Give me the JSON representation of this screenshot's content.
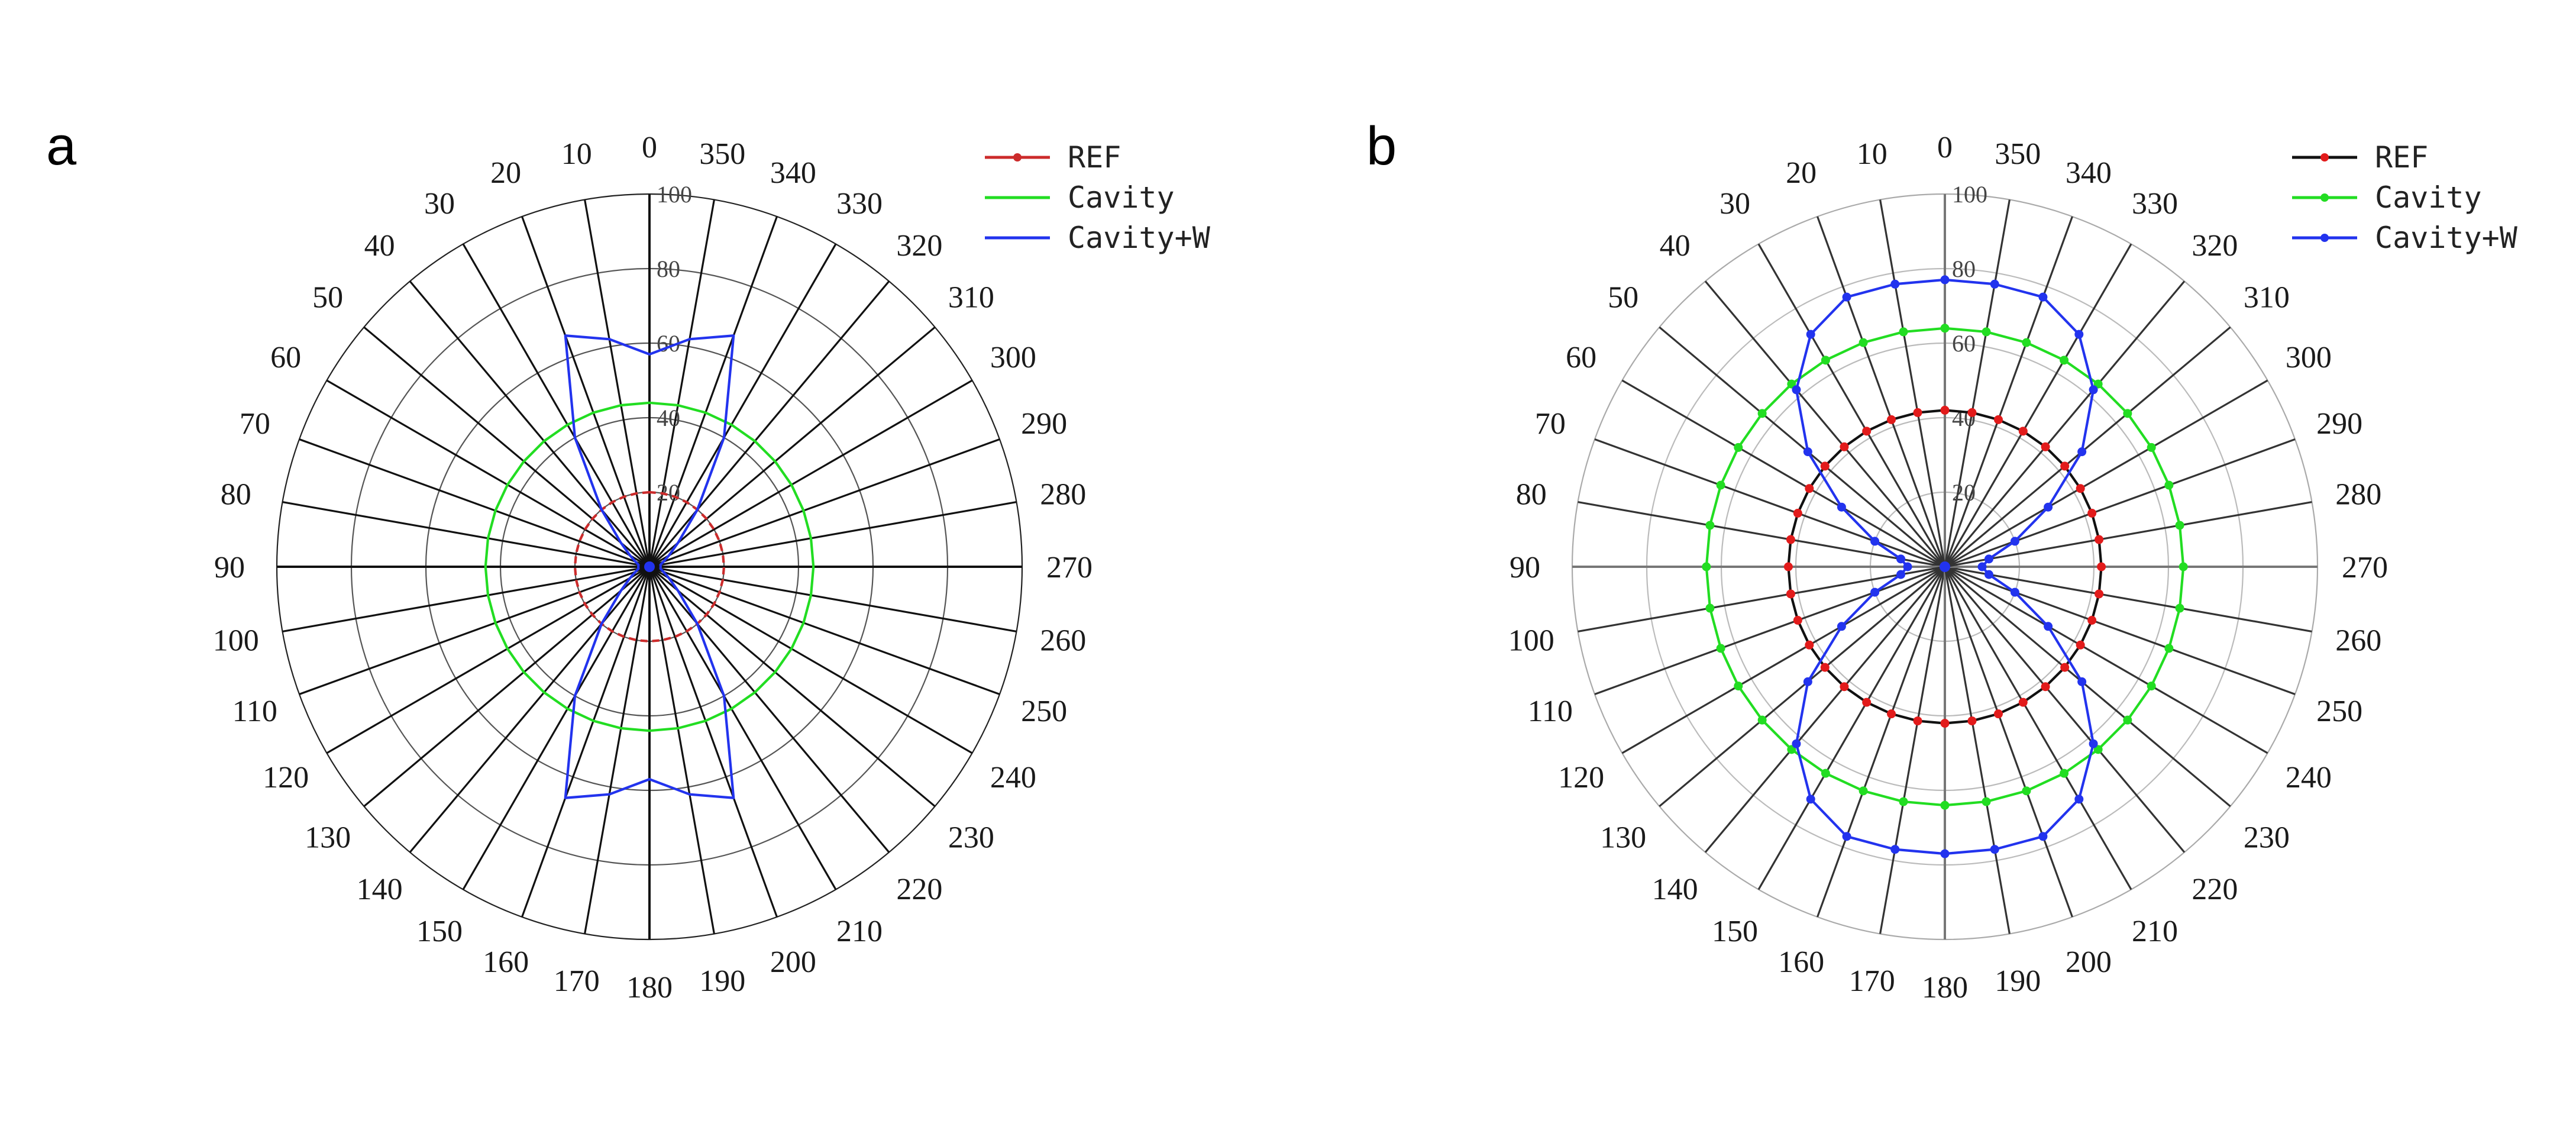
{
  "figure": {
    "panel_labels": [
      "a",
      "b"
    ]
  },
  "chart_data": [
    {
      "panel": "a",
      "type": "polar-line",
      "title": "",
      "angle_labels": [
        "0",
        "10",
        "20",
        "30",
        "40",
        "50",
        "60",
        "70",
        "80",
        "90",
        "100",
        "110",
        "120",
        "130",
        "140",
        "150",
        "160",
        "170",
        "180",
        "190",
        "200",
        "210",
        "220",
        "230",
        "240",
        "250",
        "260",
        "270",
        "280",
        "290",
        "300",
        "310",
        "320",
        "330",
        "340",
        "350"
      ],
      "angle_direction": "counterclockwise",
      "zero_location": "top",
      "radial_ticks": [
        "20",
        "40",
        "60",
        "80",
        "100"
      ],
      "rlim": [
        0,
        100
      ],
      "grid": true,
      "legend_position": "top-right",
      "series": [
        {
          "name": "REF",
          "color": "#cc2b2b",
          "line_style": "dashed",
          "marker": "none",
          "angles_deg": [
            0,
            10,
            20,
            30,
            40,
            50,
            60,
            70,
            80,
            90,
            100,
            110,
            120,
            130,
            140,
            150,
            160,
            170,
            180,
            190,
            200,
            210,
            220,
            230,
            240,
            250,
            260,
            270,
            280,
            290,
            300,
            310,
            320,
            330,
            340,
            350
          ],
          "values": [
            20,
            20,
            20,
            20,
            20,
            20,
            20,
            20,
            20,
            20,
            20,
            20,
            20,
            20,
            20,
            20,
            20,
            20,
            20,
            20,
            20,
            20,
            20,
            20,
            20,
            20,
            20,
            20,
            20,
            20,
            20,
            20,
            20,
            20,
            20,
            20
          ]
        },
        {
          "name": "Cavity",
          "color": "#22dd22",
          "line_style": "solid",
          "marker": "none",
          "angles_deg": [
            0,
            10,
            20,
            30,
            40,
            50,
            60,
            70,
            80,
            90,
            100,
            110,
            120,
            130,
            140,
            150,
            160,
            170,
            180,
            190,
            200,
            210,
            220,
            230,
            240,
            250,
            260,
            270,
            280,
            290,
            300,
            310,
            320,
            330,
            340,
            350
          ],
          "values": [
            44,
            44,
            44,
            44,
            44,
            44,
            44,
            44,
            44,
            44,
            44,
            44,
            44,
            44,
            44,
            44,
            44,
            44,
            44,
            44,
            44,
            44,
            44,
            44,
            44,
            44,
            44,
            44,
            44,
            44,
            44,
            44,
            44,
            44,
            44,
            44
          ]
        },
        {
          "name": "Cavity+W",
          "color": "#2233ee",
          "line_style": "solid",
          "marker": "none",
          "angles_deg": [
            0,
            10,
            20,
            30,
            40,
            50,
            60,
            70,
            80,
            90,
            100,
            110,
            120,
            130,
            140,
            150,
            160,
            170,
            180,
            190,
            200,
            210,
            220,
            230,
            240,
            250,
            260,
            270,
            280,
            290,
            300,
            310,
            320,
            330,
            340,
            350
          ],
          "values": [
            57,
            62,
            66,
            40,
            20,
            10,
            6,
            4,
            3,
            3,
            3,
            4,
            6,
            10,
            20,
            40,
            66,
            62,
            57,
            62,
            66,
            40,
            20,
            10,
            6,
            4,
            3,
            3,
            3,
            4,
            6,
            10,
            20,
            40,
            66,
            62
          ]
        }
      ]
    },
    {
      "panel": "b",
      "type": "polar-line",
      "title": "",
      "angle_labels": [
        "0",
        "10",
        "20",
        "30",
        "40",
        "50",
        "60",
        "70",
        "80",
        "90",
        "100",
        "110",
        "120",
        "130",
        "140",
        "150",
        "160",
        "170",
        "180",
        "190",
        "200",
        "210",
        "220",
        "230",
        "240",
        "250",
        "260",
        "270",
        "280",
        "290",
        "300",
        "310",
        "320",
        "330",
        "340",
        "350"
      ],
      "angle_direction": "counterclockwise",
      "zero_location": "top",
      "radial_ticks": [
        "20",
        "40",
        "60",
        "80",
        "100"
      ],
      "rlim": [
        0,
        100
      ],
      "grid": true,
      "legend_position": "top-right",
      "series": [
        {
          "name": "REF",
          "color": "#e21b1b",
          "line_color": "#111111",
          "line_style": "solid",
          "marker": "circle",
          "angles_deg": [
            0,
            10,
            20,
            30,
            40,
            50,
            60,
            70,
            80,
            90,
            100,
            110,
            120,
            130,
            140,
            150,
            160,
            170,
            180,
            190,
            200,
            210,
            220,
            230,
            240,
            250,
            260,
            270,
            280,
            290,
            300,
            310,
            320,
            330,
            340,
            350
          ],
          "values": [
            42,
            42,
            42,
            42,
            42,
            42,
            42,
            42,
            42,
            42,
            42,
            42,
            42,
            42,
            42,
            42,
            42,
            42,
            42,
            42,
            42,
            42,
            42,
            42,
            42,
            42,
            42,
            42,
            42,
            42,
            42,
            42,
            42,
            42,
            42,
            42
          ]
        },
        {
          "name": "Cavity",
          "color": "#22dd22",
          "line_color": "#22dd22",
          "line_style": "solid",
          "marker": "circle",
          "angles_deg": [
            0,
            10,
            20,
            30,
            40,
            50,
            60,
            70,
            80,
            90,
            100,
            110,
            120,
            130,
            140,
            150,
            160,
            170,
            180,
            190,
            200,
            210,
            220,
            230,
            240,
            250,
            260,
            270,
            280,
            290,
            300,
            310,
            320,
            330,
            340,
            350
          ],
          "values": [
            64,
            64,
            64,
            64,
            64,
            64,
            64,
            64,
            64,
            64,
            64,
            64,
            64,
            64,
            64,
            64,
            64,
            64,
            64,
            64,
            64,
            64,
            64,
            64,
            64,
            64,
            64,
            64,
            64,
            64,
            64,
            64,
            64,
            64,
            64,
            64
          ]
        },
        {
          "name": "Cavity+W",
          "color": "#2233ee",
          "line_color": "#2233ee",
          "line_style": "solid",
          "marker": "circle",
          "angles_deg": [
            0,
            10,
            20,
            30,
            40,
            50,
            60,
            70,
            80,
            90,
            100,
            110,
            120,
            130,
            140,
            150,
            160,
            170,
            180,
            190,
            200,
            210,
            220,
            230,
            240,
            250,
            260,
            270,
            280,
            290,
            300,
            310,
            320,
            330,
            340,
            350
          ],
          "values": [
            77,
            77,
            77,
            72,
            62,
            48,
            32,
            20,
            12,
            10,
            12,
            20,
            32,
            48,
            62,
            72,
            77,
            77,
            77,
            77,
            77,
            72,
            62,
            48,
            32,
            20,
            12,
            10,
            12,
            20,
            32,
            48,
            62,
            72,
            77,
            77
          ]
        }
      ]
    }
  ]
}
